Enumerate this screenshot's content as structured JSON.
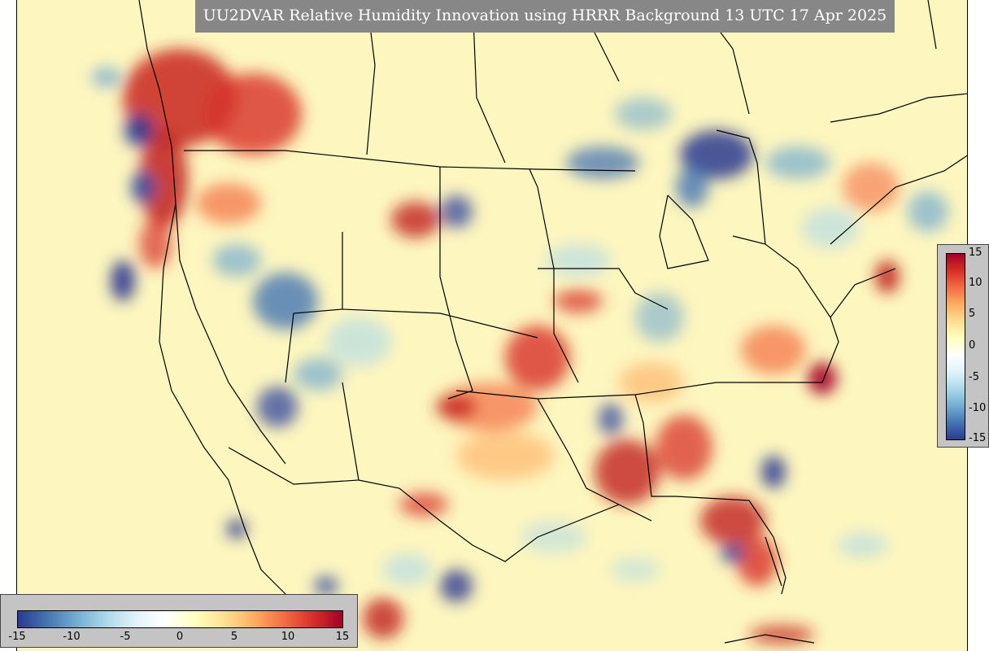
{
  "title": "UU2DVAR Relative Humidity Innovation using HRRR Background 13 UTC 17 Apr 2025",
  "colorbar": {
    "min": -15,
    "max": 15,
    "vertical_ticks": [
      "15",
      "10",
      "5",
      "0",
      "-5",
      "-10",
      "-15"
    ],
    "horizontal_ticks": [
      "-15",
      "-10",
      "-5",
      "0",
      "5",
      "10",
      "15"
    ],
    "colors": [
      "#2b3990",
      "#4575b4",
      "#74add1",
      "#abd9e9",
      "#e0f3f8",
      "#ffffbf",
      "#fee090",
      "#fdae61",
      "#f46d43",
      "#d73027",
      "#a50026"
    ]
  },
  "colors": {
    "background_field": "#fdf6bf",
    "title_box": "#878787",
    "colorbar_box": "#c4c4c4"
  }
}
